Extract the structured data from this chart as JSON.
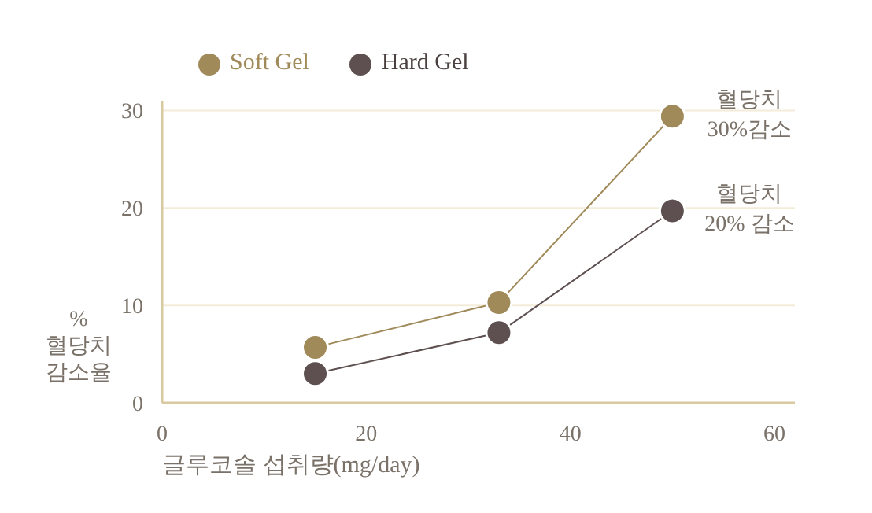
{
  "chart_data": {
    "type": "line",
    "xlabel": "글루코솔 섭취량(mg/day)",
    "ylabel": "%\n혈당치\n감소율",
    "x": [
      15,
      33,
      50
    ],
    "series": [
      {
        "name": "Soft Gel",
        "color": "#a08a5a",
        "values": [
          5.7,
          10.3,
          29.4
        ]
      },
      {
        "name": "Hard Gel",
        "color": "#5e5050",
        "values": [
          3.0,
          7.2,
          19.7
        ]
      }
    ],
    "xlim": [
      0,
      62
    ],
    "xticks": [
      0,
      20,
      40,
      60
    ],
    "ylim": [
      0,
      31
    ],
    "yticks": [
      0,
      10,
      20,
      30
    ],
    "grid": "y",
    "legend": "top left",
    "marker": "circle",
    "line_style": "solid",
    "annotations": [
      {
        "text": "혈당치\n30%감소",
        "x": 50,
        "y": 29.4
      },
      {
        "text": "혈당치\n20% 감소",
        "x": 50,
        "y": 19.7
      }
    ]
  }
}
